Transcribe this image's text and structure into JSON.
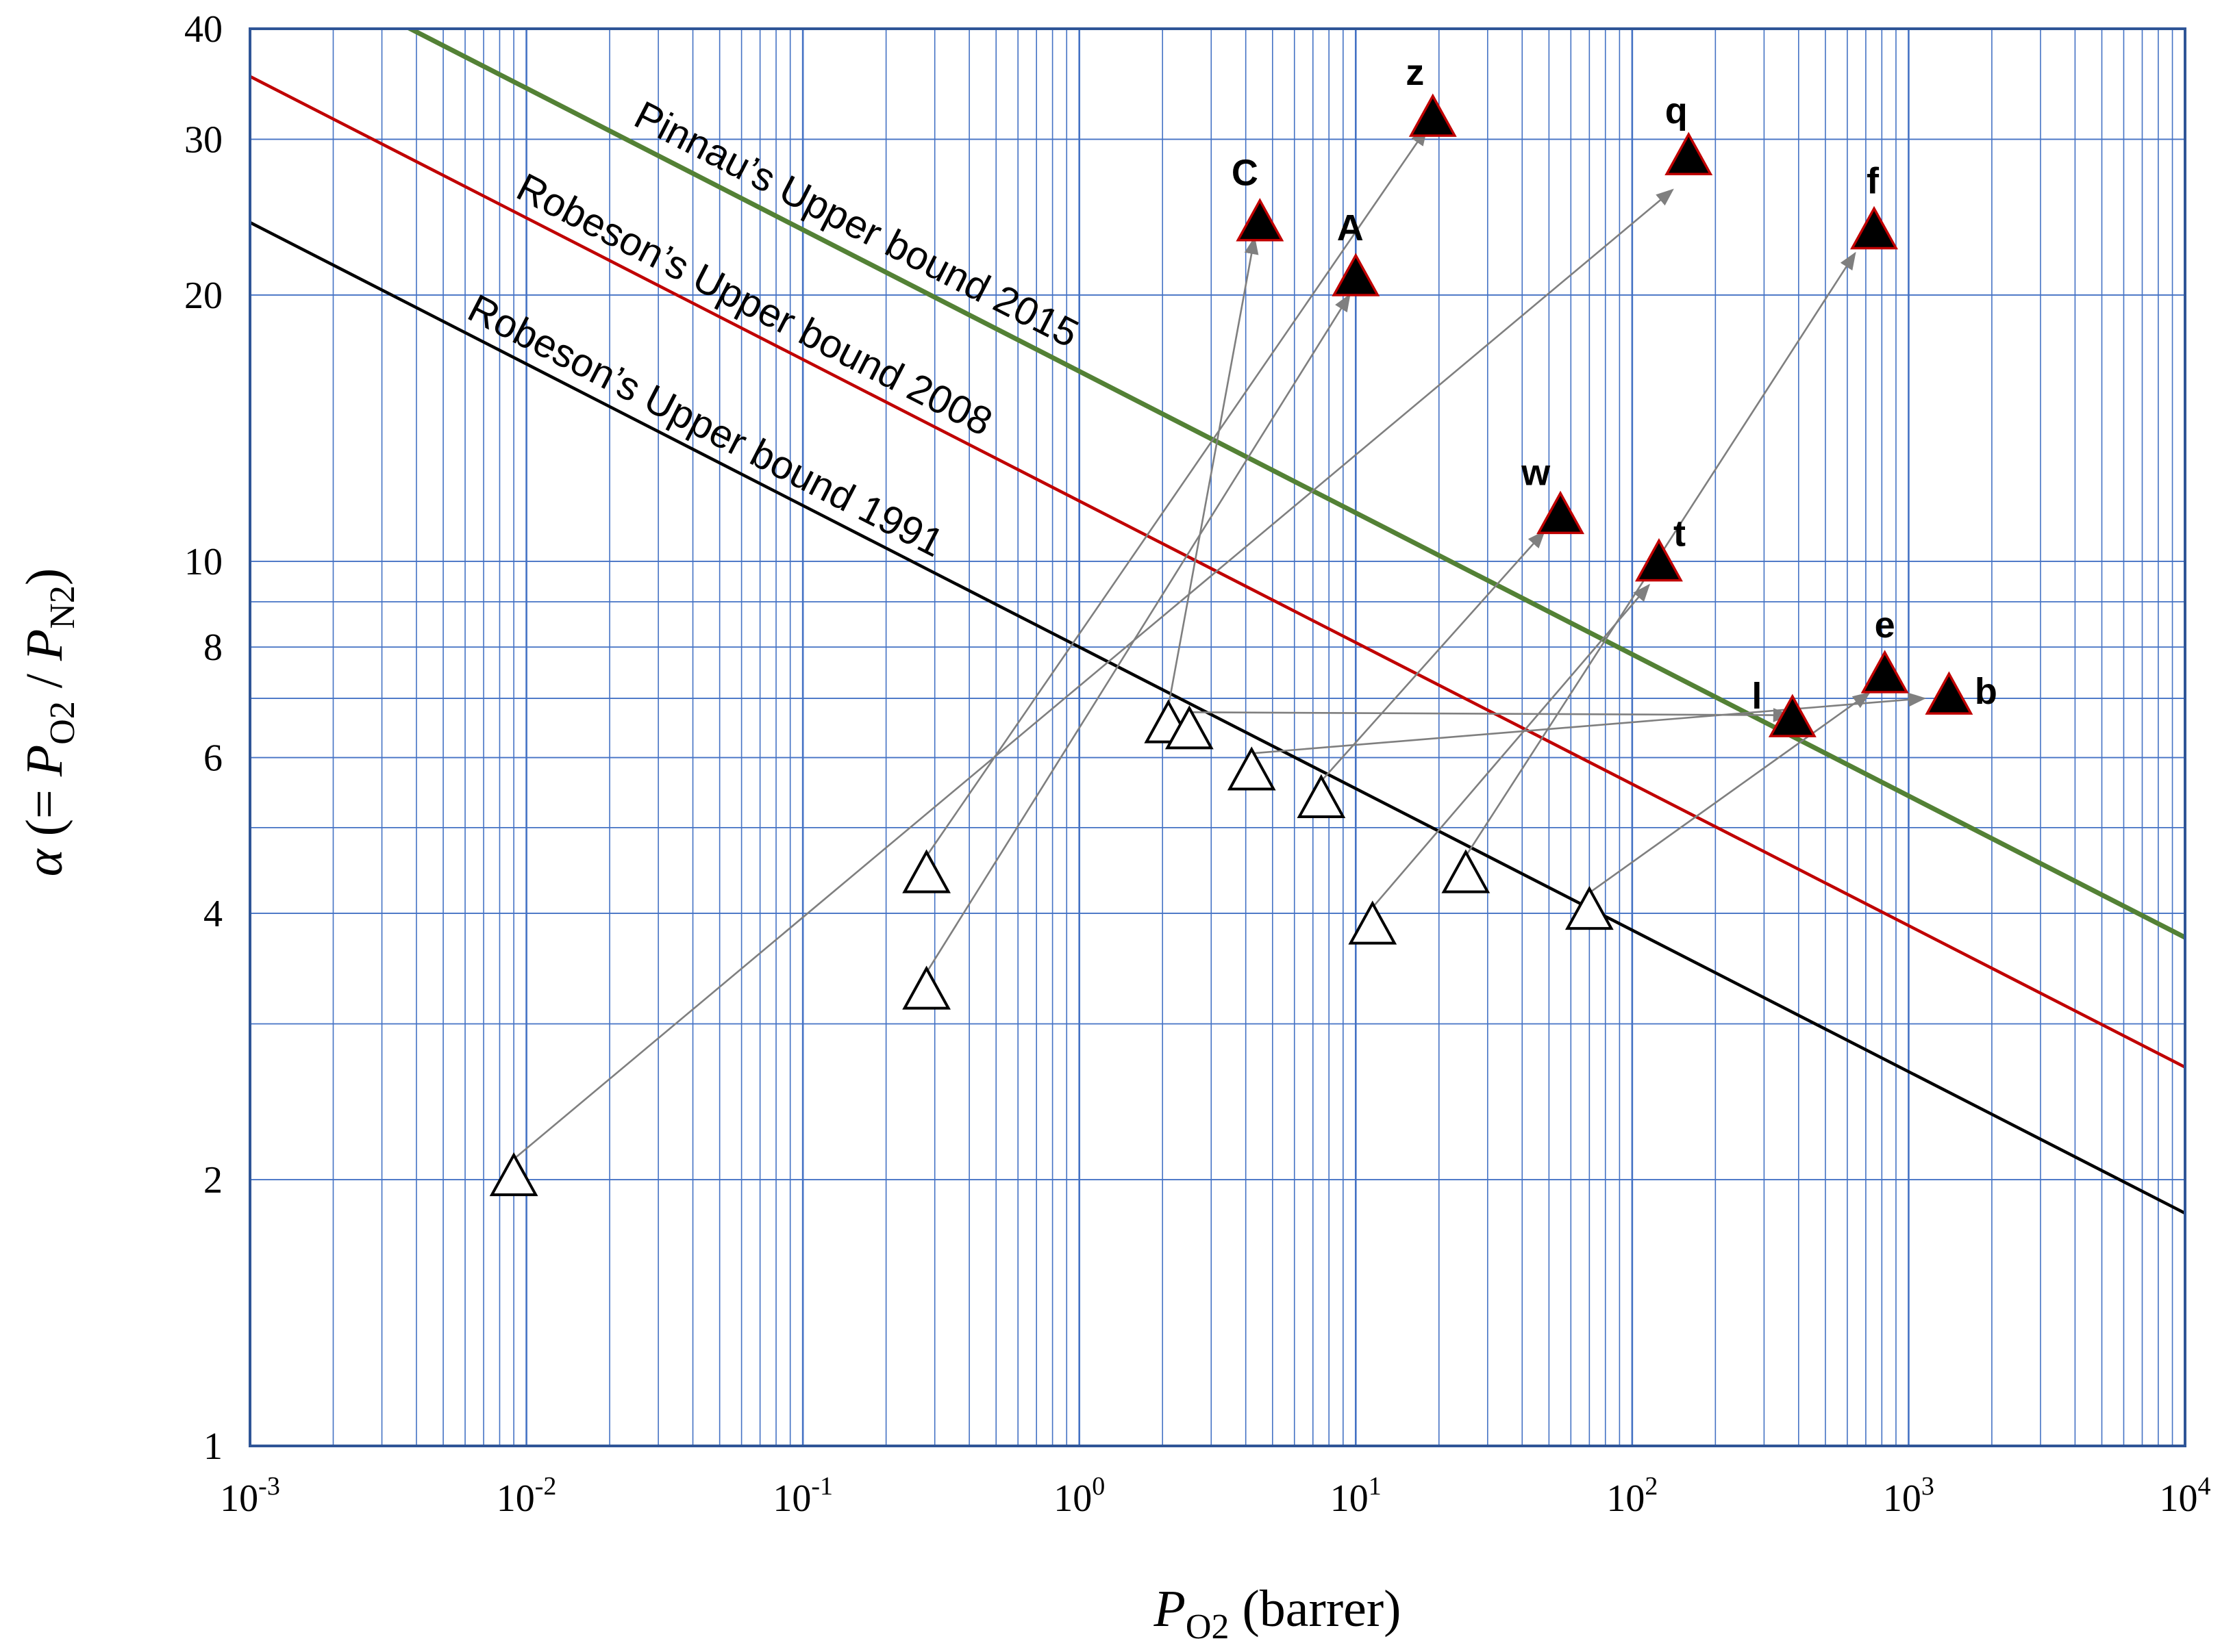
{
  "chart_data": {
    "type": "scatter",
    "x_scale": "log",
    "y_scale": "log",
    "xlim": [
      0.001,
      10000
    ],
    "ylim": [
      1,
      40
    ],
    "grid": true,
    "xlabel": {
      "var": "P",
      "sub": "O2",
      "suffix": " (barrer)"
    },
    "ylabel": {
      "alpha": "α",
      "text": "(= P",
      "sub1": "O2",
      "mid": " / P",
      "sub2": "N2",
      "close": ")"
    },
    "x_ticks": [
      {
        "value": 0.001,
        "base": "10",
        "exp": "-3"
      },
      {
        "value": 0.01,
        "base": "10",
        "exp": "-2"
      },
      {
        "value": 0.1,
        "base": "10",
        "exp": "-1"
      },
      {
        "value": 1,
        "base": "10",
        "exp": "0"
      },
      {
        "value": 10,
        "base": "10",
        "exp": "1"
      },
      {
        "value": 100,
        "base": "10",
        "exp": "2"
      },
      {
        "value": 1000,
        "base": "10",
        "exp": "3"
      },
      {
        "value": 10000,
        "base": "10",
        "exp": "4"
      }
    ],
    "y_ticks": [
      {
        "value": 1,
        "label": "1"
      },
      {
        "value": 2,
        "label": "2"
      },
      {
        "value": 4,
        "label": "4"
      },
      {
        "value": 6,
        "label": "6"
      },
      {
        "value": 8,
        "label": "8"
      },
      {
        "value": 10,
        "label": "10"
      },
      {
        "value": 20,
        "label": "20"
      },
      {
        "value": 30,
        "label": "30"
      },
      {
        "value": 40,
        "label": "40"
      }
    ],
    "upper_bounds": [
      {
        "name": "Robeson’s Upper bound 1991",
        "color": "#000000",
        "a": 8.0,
        "b": 0.16,
        "label_at": 0.1,
        "label_dy": -22
      },
      {
        "name": "Robeson’s Upper bound 2008",
        "color": "#c00000",
        "a": 11.7,
        "b": 0.16,
        "label_at": 0.15,
        "label_dy": -22
      },
      {
        "name": "Pinnau’s Upper bound 2015",
        "color": "#538135",
        "a": 16.4,
        "b": 0.16,
        "label_at": 0.4,
        "label_dy": -26
      }
    ],
    "series": [
      {
        "name": "open",
        "marker": "open-triangle",
        "points": [
          {
            "x": 0.009,
            "y": 2.0
          },
          {
            "x": 0.28,
            "y": 4.4
          },
          {
            "x": 0.28,
            "y": 3.25
          },
          {
            "x": 2.1,
            "y": 6.5
          },
          {
            "x": 2.5,
            "y": 6.4
          },
          {
            "x": 4.2,
            "y": 5.75
          },
          {
            "x": 7.5,
            "y": 5.35
          },
          {
            "x": 11.5,
            "y": 3.85
          },
          {
            "x": 25,
            "y": 4.4
          },
          {
            "x": 70,
            "y": 4.0
          }
        ]
      },
      {
        "name": "filled",
        "marker": "filled-triangle",
        "points": [
          {
            "label": "C",
            "x": 4.5,
            "y": 24
          },
          {
            "label": "z",
            "x": 19,
            "y": 31.5
          },
          {
            "label": "A",
            "x": 10,
            "y": 20.8
          },
          {
            "label": "q",
            "x": 160,
            "y": 28.5
          },
          {
            "label": "f",
            "x": 750,
            "y": 23.5
          },
          {
            "label": "w",
            "x": 55,
            "y": 11.2
          },
          {
            "label": "t",
            "x": 125,
            "y": 9.9
          },
          {
            "label": "l",
            "x": 380,
            "y": 6.6
          },
          {
            "label": "e",
            "x": 820,
            "y": 7.4
          },
          {
            "label": "b",
            "x": 1400,
            "y": 7.0
          }
        ]
      }
    ],
    "arrows": [
      {
        "from": [
          0.009,
          2.0
        ],
        "to": [
          140,
          26.3
        ]
      },
      {
        "from": [
          0.28,
          4.4
        ],
        "to": [
          18,
          30.8
        ]
      },
      {
        "from": [
          0.28,
          3.25
        ],
        "to": [
          9.5,
          20.0
        ]
      },
      {
        "from": [
          2.1,
          6.5
        ],
        "to": [
          4.3,
          23.2
        ]
      },
      {
        "from": [
          2.5,
          6.4
        ],
        "to": [
          370,
          6.7
        ]
      },
      {
        "from": [
          4.2,
          5.75
        ],
        "to": [
          1140,
          7.0
        ]
      },
      {
        "from": [
          7.5,
          5.35
        ],
        "to": [
          48,
          10.8
        ]
      },
      {
        "from": [
          11.5,
          3.85
        ],
        "to": [
          115,
          9.4
        ]
      },
      {
        "from": [
          25,
          4.4
        ],
        "to": [
          640,
          22.3
        ]
      },
      {
        "from": [
          70,
          4.0
        ],
        "to": [
          720,
          7.1
        ]
      }
    ]
  }
}
